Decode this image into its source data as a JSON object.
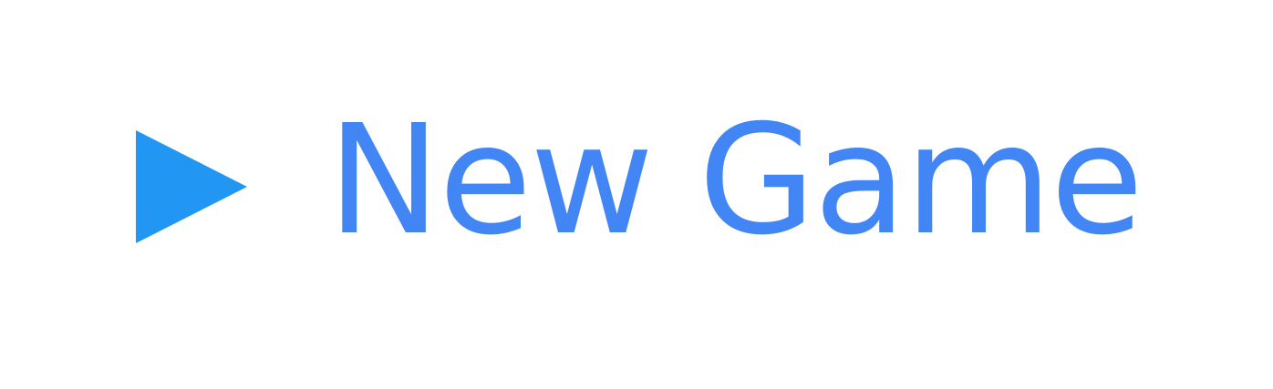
{
  "menu": {
    "new_game_label": "New Game",
    "icon": "play-icon",
    "colors": {
      "icon": "#2196f3",
      "text": "#4285f4",
      "background": "#ffffff"
    }
  }
}
